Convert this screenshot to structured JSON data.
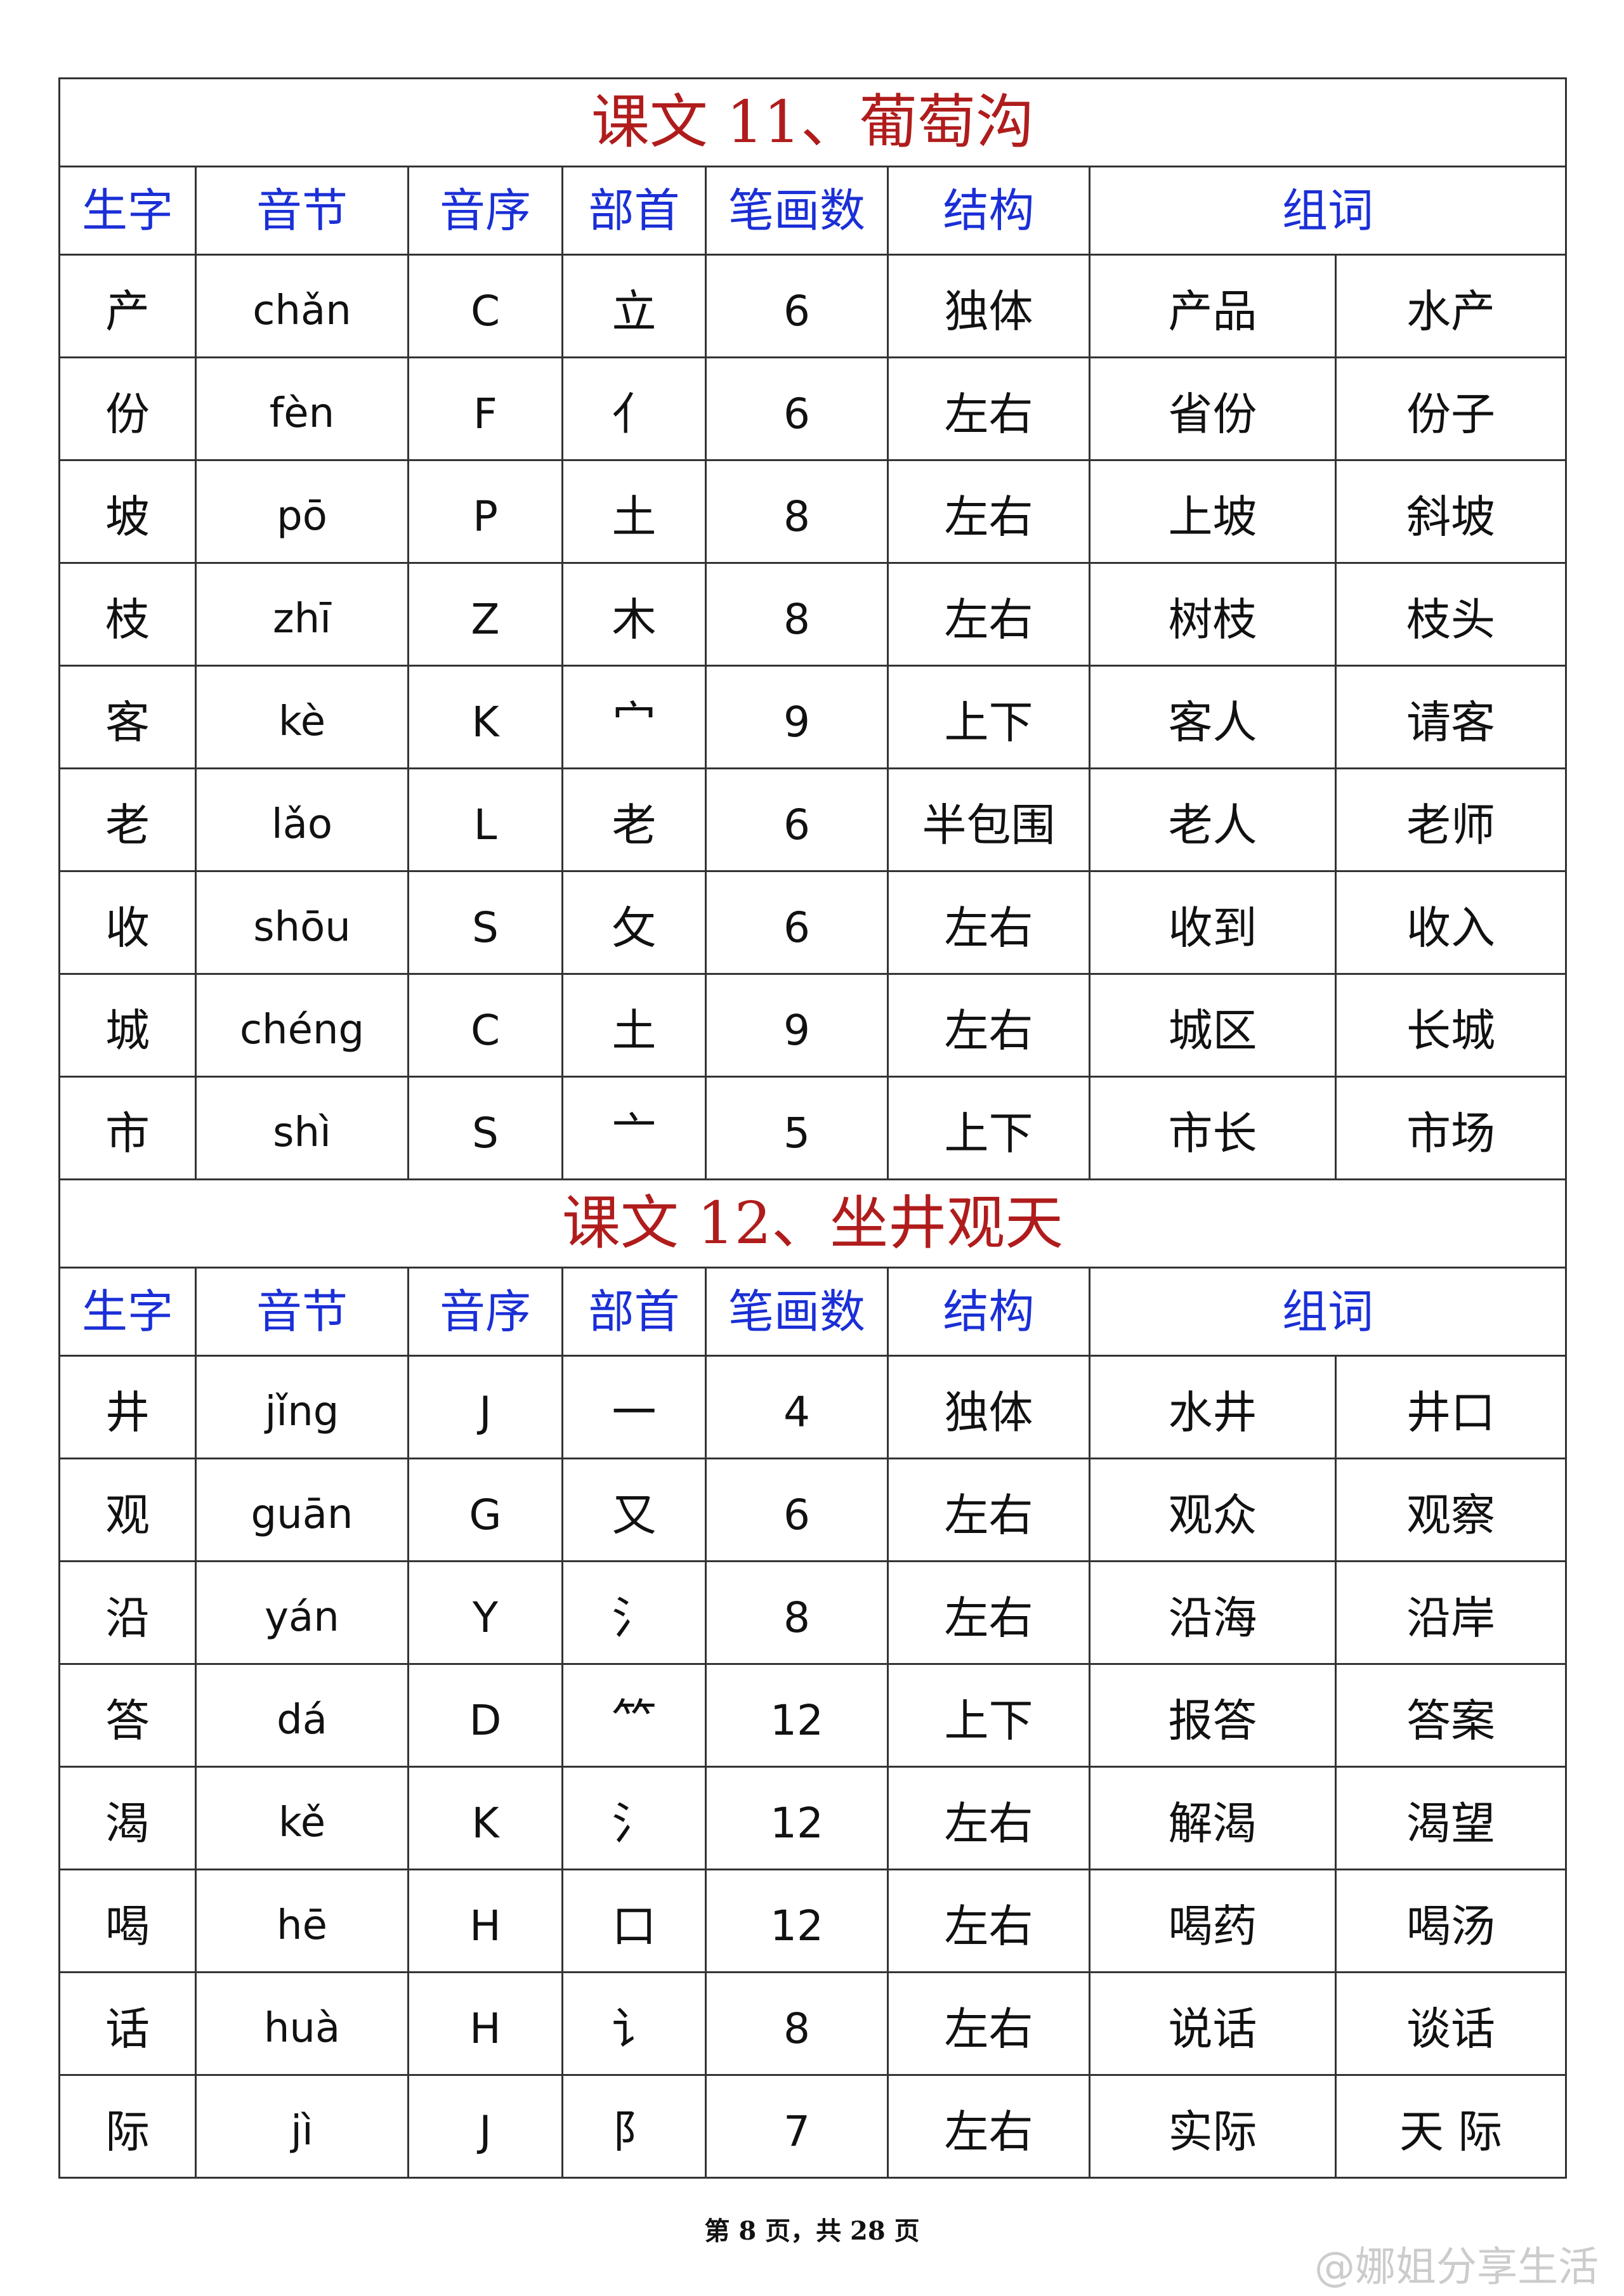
{
  "headers": [
    "生字",
    "音节",
    "音序",
    "部首",
    "笔画数",
    "结构",
    "组词"
  ],
  "sections": [
    {
      "title": "课文 11、葡萄沟",
      "rows": [
        [
          "产",
          "chǎn",
          "C",
          "立",
          "6",
          "独体",
          "产品",
          "水产"
        ],
        [
          "份",
          "fèn",
          "F",
          "亻",
          "6",
          "左右",
          "省份",
          "份子"
        ],
        [
          "坡",
          "pō",
          "P",
          "土",
          "8",
          "左右",
          "上坡",
          "斜坡"
        ],
        [
          "枝",
          "zhī",
          "Z",
          "木",
          "8",
          "左右",
          "树枝",
          "枝头"
        ],
        [
          "客",
          "kè",
          "K",
          "宀",
          "9",
          "上下",
          "客人",
          "请客"
        ],
        [
          "老",
          "lǎo",
          "L",
          "老",
          "6",
          "半包围",
          "老人",
          "老师"
        ],
        [
          "收",
          "shōu",
          "S",
          "攵",
          "6",
          "左右",
          "收到",
          "收入"
        ],
        [
          "城",
          "chéng",
          "C",
          "土",
          "9",
          "左右",
          "城区",
          "长城"
        ],
        [
          "市",
          "shì",
          "S",
          "亠",
          "5",
          "上下",
          "市长",
          "市场"
        ]
      ]
    },
    {
      "title": "课文 12、坐井观天",
      "rows": [
        [
          "井",
          "jǐng",
          "J",
          "一",
          "4",
          "独体",
          "水井",
          "井口"
        ],
        [
          "观",
          "guān",
          "G",
          "又",
          "6",
          "左右",
          "观众",
          "观察"
        ],
        [
          "沿",
          "yán",
          "Y",
          "氵",
          "8",
          "左右",
          "沿海",
          "沿岸"
        ],
        [
          "答",
          "dá",
          "D",
          "⺮",
          "12",
          "上下",
          "报答",
          "答案"
        ],
        [
          "渴",
          "kě",
          "K",
          "氵",
          "12",
          "左右",
          "解渴",
          "渴望"
        ],
        [
          "喝",
          "hē",
          "H",
          "口",
          "12",
          "左右",
          "喝药",
          "喝汤"
        ],
        [
          "话",
          "huà",
          "H",
          "讠",
          "8",
          "左右",
          "说话",
          "谈话"
        ],
        [
          "际",
          "jì",
          "J",
          "阝",
          "7",
          "左右",
          "实际",
          "天 际"
        ]
      ]
    }
  ],
  "footer": "第 8 页，共 28 页",
  "watermark": "@娜姐分享生活",
  "colors": {
    "title": "#b01c1c",
    "header": "#1a2fd6"
  }
}
